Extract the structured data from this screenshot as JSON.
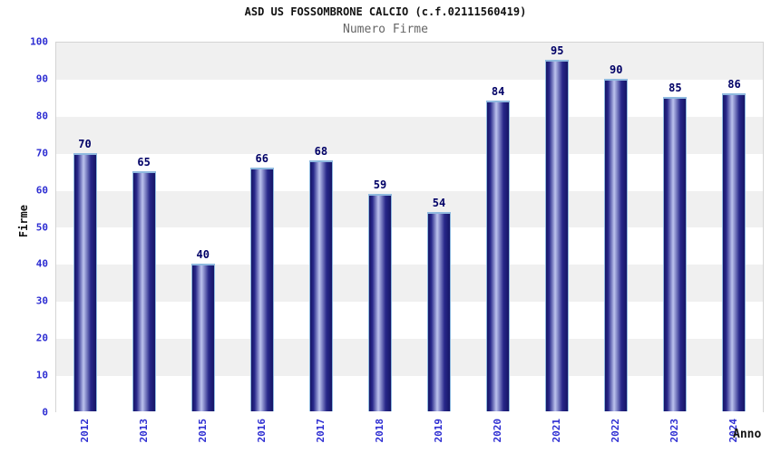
{
  "header": {
    "title": "ASD US FOSSOMBRONE CALCIO (c.f.02111560419)",
    "subtitle": "Numero Firme"
  },
  "chart_data": {
    "type": "bar",
    "title": "ASD US FOSSOMBRONE CALCIO (c.f.02111560419)",
    "subtitle": "Numero Firme",
    "categories": [
      "2012",
      "2013",
      "2015",
      "2016",
      "2017",
      "2018",
      "2019",
      "2020",
      "2021",
      "2022",
      "2023",
      "2024"
    ],
    "values": [
      70,
      65,
      40,
      66,
      68,
      59,
      54,
      84,
      95,
      90,
      85,
      86
    ],
    "xlabel": "Anno",
    "ylabel": "Firme",
    "ylim": [
      0,
      100
    ],
    "ytick_step": 10,
    "yticks": [
      0,
      10,
      20,
      30,
      40,
      50,
      60,
      70,
      80,
      90,
      100
    ],
    "legend": "none",
    "grid": "alternating horizontal bands every 10 units",
    "colors": {
      "tick_label_blue": "#2d2dd2",
      "value_label_navy": "#000066",
      "bar_edge_dark": "#151566",
      "bar_mid": "#28288a",
      "bar_highlight": "#bcc3ee",
      "bar_cap_lightblue": "#8fb9df",
      "band_gray": "#f0f0f0",
      "band_white": "#ffffff",
      "plot_border": "#d4d4d4",
      "title_color": "#111111",
      "subtitle_color": "#666666"
    }
  }
}
